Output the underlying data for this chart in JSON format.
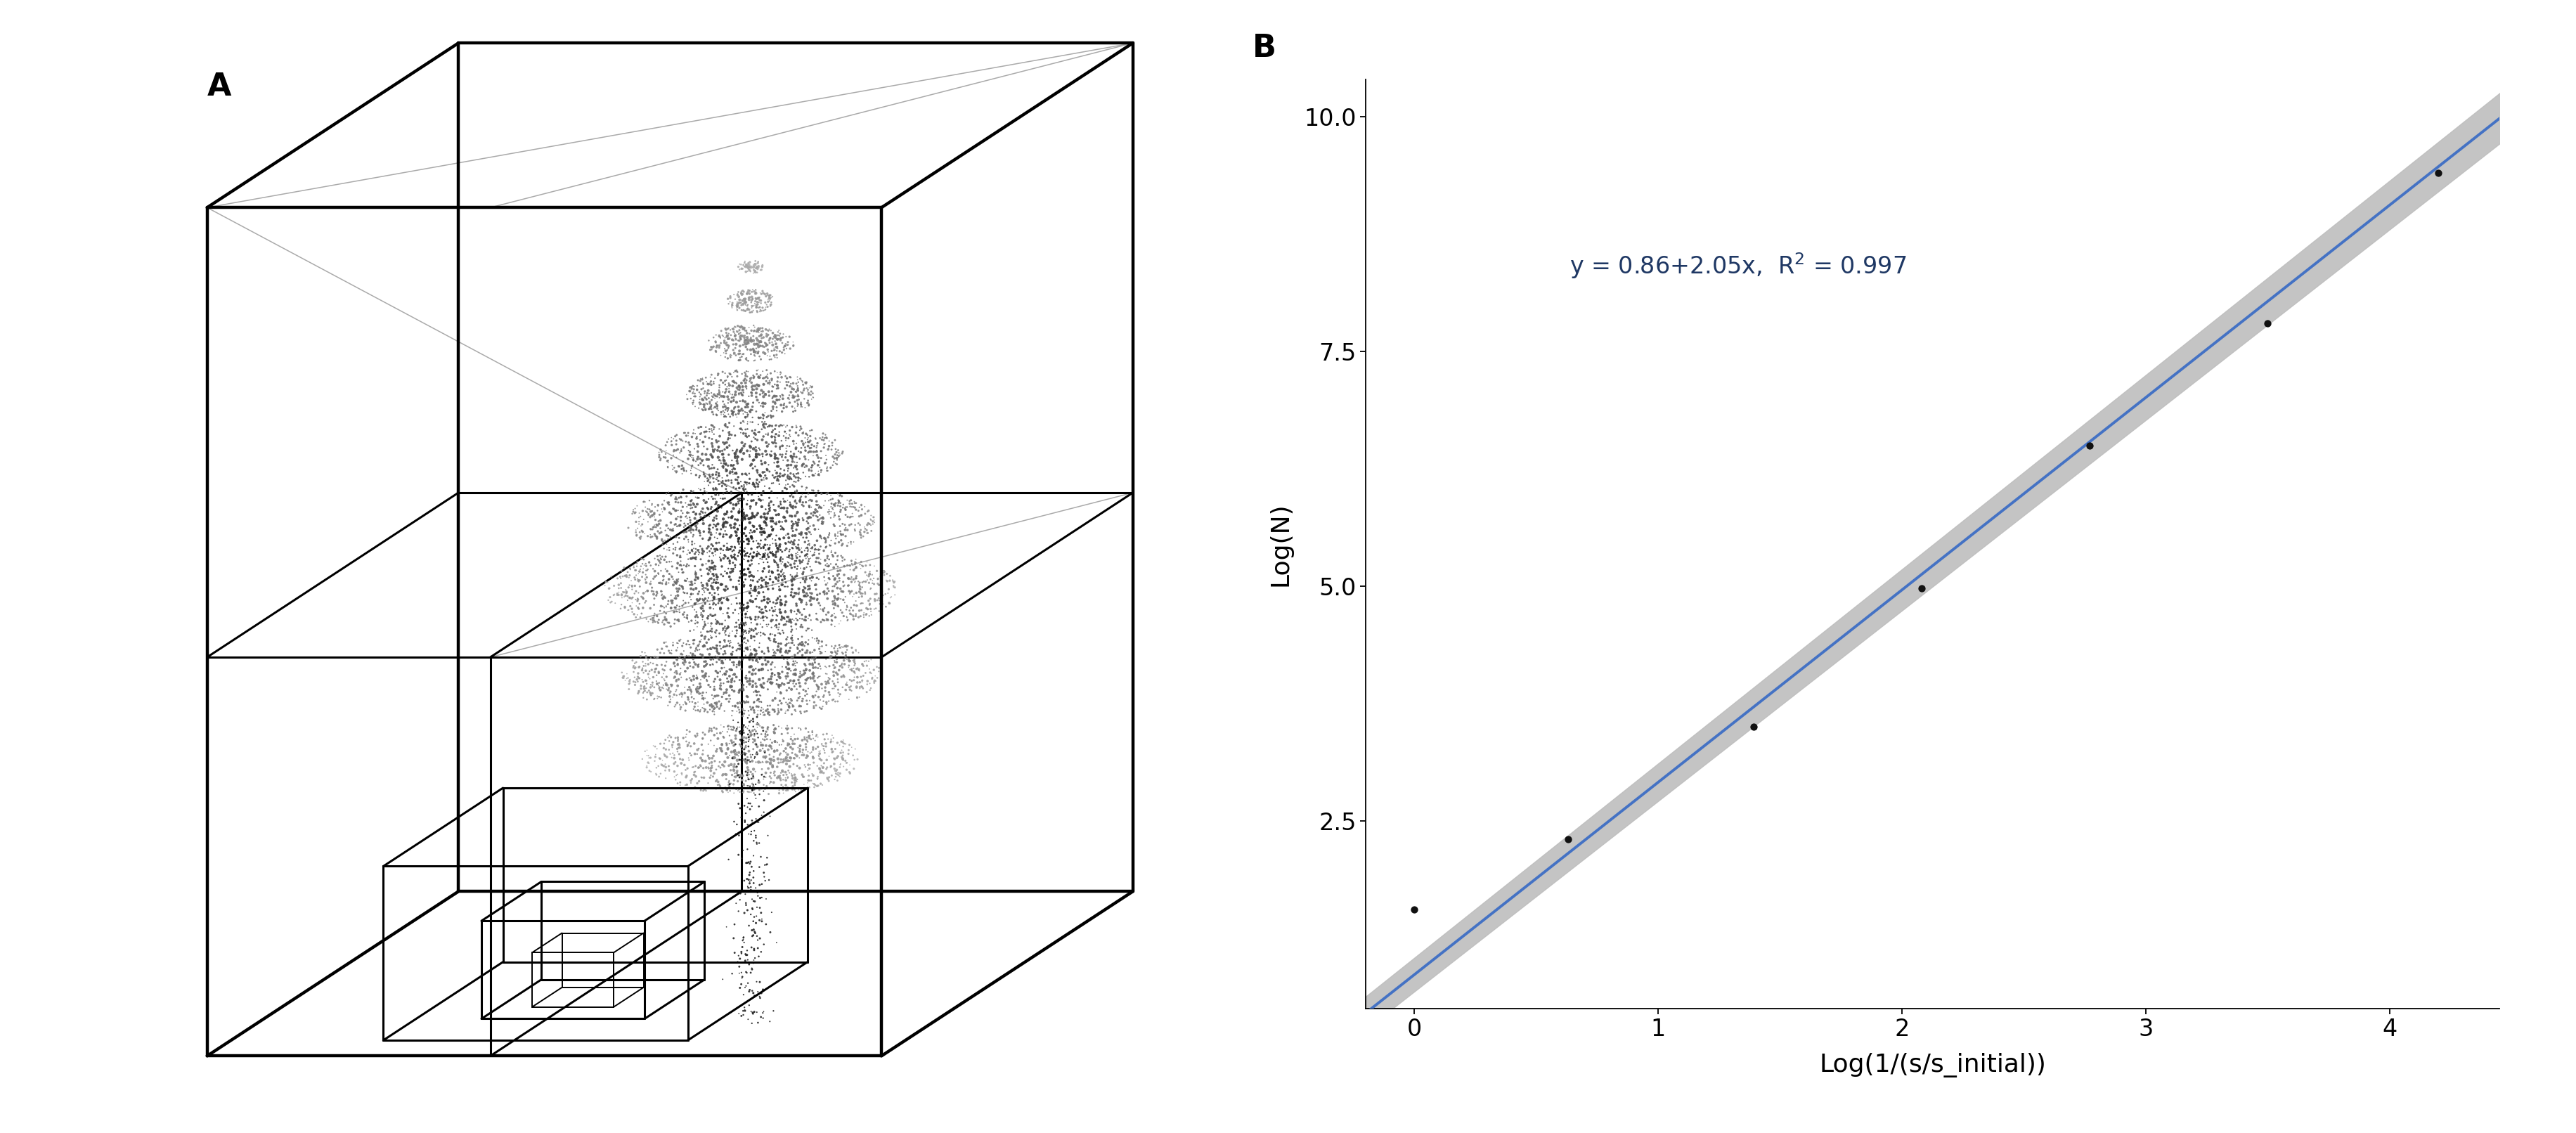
{
  "scatter_x": [
    0.0,
    0.63,
    1.39,
    2.08,
    2.77,
    3.5,
    4.2
  ],
  "scatter_y": [
    1.55,
    2.3,
    3.5,
    4.98,
    6.5,
    7.8,
    9.4
  ],
  "intercept": 0.86,
  "slope": 2.05,
  "xlabel": "Log(1/(s/s_initial))",
  "ylabel": "Log(N)",
  "xlim": [
    -0.2,
    4.45
  ],
  "ylim": [
    0.5,
    10.4
  ],
  "xticks": [
    0,
    1,
    2,
    3,
    4
  ],
  "yticks": [
    2.5,
    5.0,
    7.5,
    10.0
  ],
  "label_A": "A",
  "label_B": "B",
  "line_color": "#4472C4",
  "ci_color": "#BEBEBE",
  "dot_color": "#111111",
  "background_color": "#FFFFFF",
  "equation_color": "#1F3864",
  "label_fontsize": 32,
  "axis_label_fontsize": 26,
  "tick_fontsize": 24,
  "annotation_fontsize": 24
}
